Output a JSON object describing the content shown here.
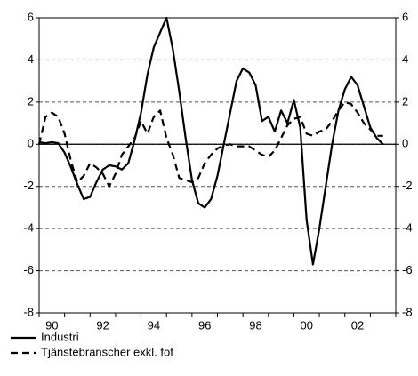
{
  "chart_data": {
    "type": "line",
    "x": [
      1990,
      1990.25,
      1990.5,
      1990.75,
      1991,
      1991.25,
      1991.5,
      1991.75,
      1992,
      1992.25,
      1992.5,
      1992.75,
      1993,
      1993.25,
      1993.5,
      1993.75,
      1994,
      1994.25,
      1994.5,
      1994.75,
      1995,
      1995.25,
      1995.5,
      1995.75,
      1996,
      1996.25,
      1996.5,
      1996.75,
      1997,
      1997.25,
      1997.5,
      1997.75,
      1998,
      1998.25,
      1998.5,
      1998.75,
      1999,
      1999.25,
      1999.5,
      1999.75,
      2000,
      2000.25,
      2000.5,
      2000.75,
      2001,
      2001.25,
      2001.5,
      2001.75,
      2002,
      2002.25,
      2002.5,
      2002.75,
      2003,
      2003.25,
      2003.5
    ],
    "series": [
      {
        "name": "Industri",
        "color": "#000000",
        "dash": "solid",
        "values": [
          0.1,
          0.05,
          0.1,
          0.05,
          -0.4,
          -1.1,
          -1.9,
          -2.6,
          -2.5,
          -1.8,
          -1.2,
          -1.0,
          -1.05,
          -1.2,
          -0.9,
          0.2,
          1.5,
          3.3,
          4.6,
          5.3,
          6.0,
          4.5,
          2.5,
          0.3,
          -1.7,
          -2.8,
          -3.0,
          -2.6,
          -1.5,
          0,
          1.5,
          3.0,
          3.6,
          3.4,
          2.8,
          1.1,
          1.3,
          0.6,
          1.6,
          1.0,
          2.1,
          0.8,
          -3.6,
          -5.7,
          -4.0,
          -2.0,
          0,
          1.6,
          2.6,
          3.2,
          2.8,
          1.8,
          0.8,
          0.3,
          0
        ]
      },
      {
        "name": "Tjänstebranscher exkl. fof",
        "color": "#000000",
        "dash": "dashed",
        "values": [
          0,
          1.3,
          1.5,
          1.3,
          0.5,
          -0.8,
          -1.8,
          -1.5,
          -0.9,
          -1.1,
          -1.4,
          -2.0,
          -1.4,
          -0.5,
          -0.1,
          0.3,
          1.1,
          0.5,
          1.3,
          1.6,
          0.3,
          -0.5,
          -1.6,
          -1.7,
          -1.8,
          -1.6,
          -0.9,
          -0.5,
          -0.2,
          -0.05,
          0,
          -0.1,
          -0.1,
          -0.1,
          -0.3,
          -0.5,
          -0.6,
          -0.3,
          0.3,
          0.9,
          1.2,
          1.3,
          0.5,
          0.4,
          0.6,
          0.7,
          1.1,
          1.6,
          2.0,
          1.9,
          1.5,
          1.0,
          0.7,
          0.4,
          0.4
        ]
      }
    ],
    "xlim": [
      1990,
      2004
    ],
    "xticks": [
      {
        "value": 1990.5,
        "label": "90"
      },
      {
        "value": 1992.5,
        "label": "92"
      },
      {
        "value": 1994.5,
        "label": "94"
      },
      {
        "value": 1996.5,
        "label": "96"
      },
      {
        "value": 1998.5,
        "label": "98"
      },
      {
        "value": 2000.5,
        "label": "00"
      },
      {
        "value": 2002.5,
        "label": "02"
      }
    ],
    "xminor_ticks": [
      1990,
      1991,
      1992,
      1993,
      1994,
      1995,
      1996,
      1997,
      1998,
      1999,
      2000,
      2001,
      2002,
      2003,
      2004
    ],
    "ylim": [
      -8,
      6
    ],
    "yticks": [
      -8,
      -6,
      -4,
      -2,
      0,
      2,
      4,
      6
    ],
    "y2lim": [
      -8,
      6
    ],
    "y2ticks": [
      -8,
      -6,
      -4,
      -2,
      0,
      2,
      4,
      6
    ],
    "grid": true,
    "legend": "bottom-left"
  }
}
